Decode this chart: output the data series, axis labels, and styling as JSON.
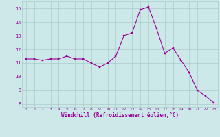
{
  "x": [
    0,
    1,
    2,
    3,
    4,
    5,
    6,
    7,
    8,
    9,
    10,
    11,
    12,
    13,
    14,
    15,
    16,
    17,
    18,
    19,
    20,
    21,
    22,
    23
  ],
  "y": [
    11.3,
    11.3,
    11.2,
    11.3,
    11.3,
    11.5,
    11.3,
    11.3,
    11.0,
    10.7,
    11.0,
    11.5,
    13.0,
    13.2,
    14.9,
    15.1,
    13.5,
    11.7,
    12.1,
    11.2,
    10.3,
    9.0,
    8.6,
    8.1
  ],
  "line_color": "#990099",
  "marker_color": "#990099",
  "bg_color": "#cce8e8",
  "grid_color": "#aacccc",
  "xlabel": "Windchill (Refroidissement éolien,°C)",
  "xlabel_color": "#990099",
  "tick_color": "#990099",
  "ylim": [
    7.8,
    15.5
  ],
  "yticks": [
    8,
    9,
    10,
    11,
    12,
    13,
    14,
    15
  ],
  "xlim": [
    -0.5,
    23.5
  ],
  "xticks": [
    0,
    1,
    2,
    3,
    4,
    5,
    6,
    7,
    8,
    9,
    10,
    11,
    12,
    13,
    14,
    15,
    16,
    17,
    18,
    19,
    20,
    21,
    22,
    23
  ]
}
